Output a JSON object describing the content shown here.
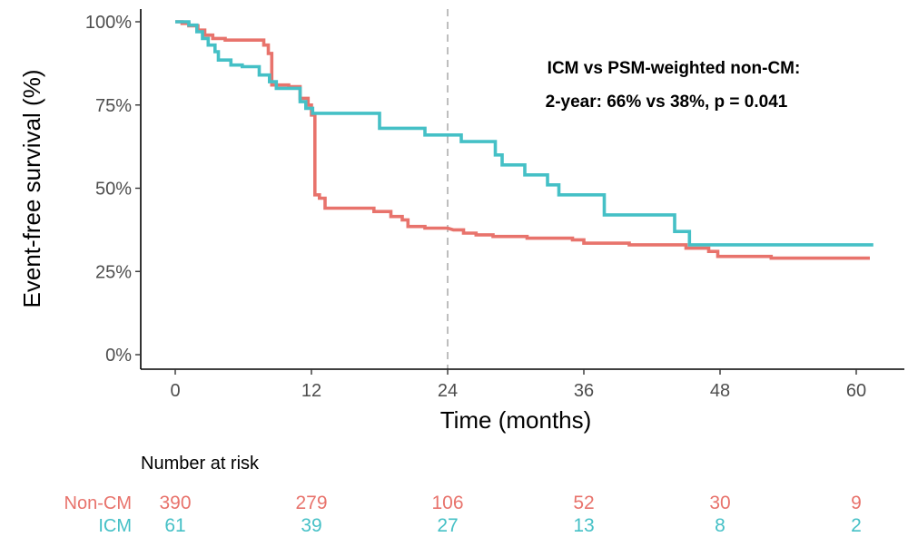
{
  "chart_data": {
    "type": "line",
    "chart_subtype": "kaplan-meier step",
    "title": "",
    "xlabel": "Time (months)",
    "ylabel": "Event-free survival (%)",
    "xlim": [
      -2,
      66
    ],
    "ylim": [
      -4,
      104
    ],
    "x_ticks": [
      0,
      12,
      24,
      36,
      48,
      60
    ],
    "x_tick_labels": [
      "0",
      "12",
      "24",
      "36",
      "48",
      "60"
    ],
    "y_ticks": [
      0,
      25,
      50,
      75,
      100
    ],
    "y_tick_labels": [
      "0%",
      "25%",
      "50%",
      "75%",
      "100%"
    ],
    "grid": false,
    "legend": "none",
    "reference_line": {
      "x": 24,
      "style": "dashed",
      "color": "#bebebe"
    },
    "annotation": {
      "line1": "ICM vs PSM-weighted non-CM:",
      "line2": "2-year: 66% vs 38%, p = 0.041"
    },
    "series": [
      {
        "key": "noncm",
        "color": "#E8736C",
        "points": [
          [
            0,
            100
          ],
          [
            0.6,
            100
          ],
          [
            0.6,
            99.5
          ],
          [
            1.2,
            99.5
          ],
          [
            1.2,
            98.8
          ],
          [
            2,
            98.8
          ],
          [
            2,
            97.5
          ],
          [
            2.6,
            97.5
          ],
          [
            2.6,
            96
          ],
          [
            3.3,
            96
          ],
          [
            3.3,
            95
          ],
          [
            4.4,
            95
          ],
          [
            4.4,
            94.5
          ],
          [
            7.8,
            94.5
          ],
          [
            7.8,
            93
          ],
          [
            8.2,
            93
          ],
          [
            8.2,
            90.5
          ],
          [
            8.5,
            90.5
          ],
          [
            8.5,
            81
          ],
          [
            10,
            81
          ],
          [
            10,
            80.5
          ],
          [
            11,
            80.5
          ],
          [
            11,
            77
          ],
          [
            11.7,
            77
          ],
          [
            11.7,
            75
          ],
          [
            12,
            75
          ],
          [
            12,
            72
          ],
          [
            12.3,
            72
          ],
          [
            12.3,
            48
          ],
          [
            12.7,
            48
          ],
          [
            12.7,
            47
          ],
          [
            13.2,
            47
          ],
          [
            13.2,
            44
          ],
          [
            17.5,
            44
          ],
          [
            17.5,
            43
          ],
          [
            19,
            43
          ],
          [
            19,
            41.5
          ],
          [
            20,
            41.5
          ],
          [
            20,
            40.5
          ],
          [
            20.5,
            40.5
          ],
          [
            20.5,
            38.5
          ],
          [
            22,
            38.5
          ],
          [
            22,
            38
          ],
          [
            24,
            38
          ],
          [
            24.5,
            37.5
          ],
          [
            25.4,
            37.5
          ],
          [
            25.4,
            36.5
          ],
          [
            26.5,
            36.5
          ],
          [
            26.5,
            36
          ],
          [
            28,
            36
          ],
          [
            28,
            35.5
          ],
          [
            31,
            35.5
          ],
          [
            31,
            35
          ],
          [
            35,
            35
          ],
          [
            35,
            34.5
          ],
          [
            36,
            34.5
          ],
          [
            36,
            33.5
          ],
          [
            40,
            33.5
          ],
          [
            40,
            33
          ],
          [
            45,
            33
          ],
          [
            45,
            32
          ],
          [
            47,
            32
          ],
          [
            47,
            31
          ],
          [
            47.8,
            31
          ],
          [
            47.8,
            29.5
          ],
          [
            52.5,
            29.5
          ],
          [
            52.5,
            29
          ],
          [
            61.2,
            29
          ]
        ]
      },
      {
        "key": "icm",
        "color": "#45C0C6",
        "points": [
          [
            0,
            100
          ],
          [
            1.2,
            100
          ],
          [
            1.2,
            99
          ],
          [
            1.9,
            99
          ],
          [
            1.9,
            97
          ],
          [
            2.4,
            97
          ],
          [
            2.4,
            95
          ],
          [
            2.9,
            95
          ],
          [
            2.9,
            93
          ],
          [
            3.5,
            93
          ],
          [
            3.5,
            91
          ],
          [
            3.8,
            91
          ],
          [
            3.8,
            88.5
          ],
          [
            4.9,
            88.5
          ],
          [
            4.9,
            87
          ],
          [
            5.9,
            87
          ],
          [
            5.9,
            86.5
          ],
          [
            7.4,
            86.5
          ],
          [
            7.4,
            84
          ],
          [
            8.3,
            84
          ],
          [
            8.3,
            82
          ],
          [
            8.9,
            82
          ],
          [
            8.9,
            80
          ],
          [
            11,
            80
          ],
          [
            11,
            76
          ],
          [
            11.5,
            76
          ],
          [
            11.5,
            74
          ],
          [
            12.1,
            74
          ],
          [
            12.1,
            72.5
          ],
          [
            18,
            72.5
          ],
          [
            18,
            68
          ],
          [
            22,
            68
          ],
          [
            22,
            66
          ],
          [
            25.2,
            66
          ],
          [
            25.2,
            64
          ],
          [
            28.2,
            64
          ],
          [
            28.2,
            60
          ],
          [
            28.8,
            60
          ],
          [
            28.8,
            57
          ],
          [
            30.8,
            57
          ],
          [
            30.8,
            54
          ],
          [
            32.8,
            54
          ],
          [
            32.8,
            51
          ],
          [
            33.8,
            51
          ],
          [
            33.8,
            48
          ],
          [
            37.8,
            48
          ],
          [
            37.8,
            42
          ],
          [
            44,
            42
          ],
          [
            44,
            37
          ],
          [
            45.3,
            37
          ],
          [
            45.3,
            33
          ],
          [
            61.5,
            33
          ]
        ]
      }
    ],
    "risk_table": {
      "title": "Number at risk",
      "times": [
        0,
        12,
        24,
        36,
        48,
        60
      ],
      "rows": [
        {
          "key": "noncm",
          "label": "Non-CM",
          "color": "#E8736C",
          "values": [
            "390",
            "279",
            "106",
            "52",
            "30",
            "9"
          ]
        },
        {
          "key": "icm",
          "label": "ICM",
          "color": "#45C0C6",
          "values": [
            "61",
            "39",
            "27",
            "13",
            "8",
            "2"
          ]
        }
      ]
    }
  }
}
